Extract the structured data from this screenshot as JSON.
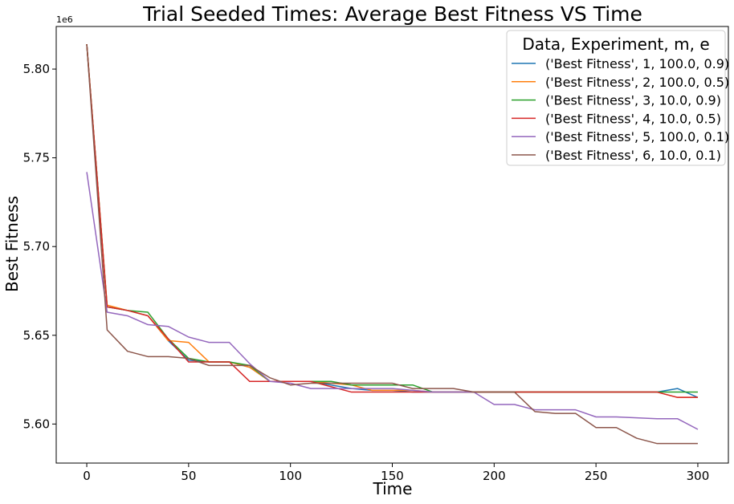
{
  "chart_data": {
    "type": "line",
    "title": "Trial Seeded Times: Average Best Fitness VS Time",
    "xlabel": "Time",
    "ylabel": "Best Fitness",
    "y_offset_label": "1e6",
    "xlim": [
      -15,
      315
    ],
    "ylim": [
      5.578,
      5.824
    ],
    "y_multiplier": 1000000,
    "x_ticks": [
      0,
      50,
      100,
      150,
      200,
      250,
      300
    ],
    "x_tick_labels": [
      "0",
      "50",
      "100",
      "150",
      "200",
      "250",
      "300"
    ],
    "y_ticks": [
      5.6,
      5.65,
      5.7,
      5.75,
      5.8
    ],
    "y_tick_labels": [
      "5.60",
      "5.65",
      "5.70",
      "5.75",
      "5.80"
    ],
    "grid": false,
    "legend": {
      "title": "Data, Experiment, m, e",
      "placement": "top-right"
    },
    "x": [
      0,
      10,
      20,
      30,
      40,
      50,
      60,
      70,
      80,
      90,
      100,
      110,
      120,
      130,
      140,
      150,
      160,
      170,
      180,
      190,
      200,
      210,
      220,
      230,
      240,
      250,
      260,
      270,
      280,
      290,
      300
    ],
    "series": [
      {
        "name": "('Best Fitness', 1, 100.0, 0.9)",
        "color": "#1f77b4",
        "values": [
          5.814,
          5.666,
          5.664,
          5.661,
          5.647,
          5.636,
          5.635,
          5.635,
          5.632,
          5.624,
          5.624,
          5.624,
          5.622,
          5.62,
          5.619,
          5.619,
          5.618,
          5.618,
          5.618,
          5.618,
          5.618,
          5.618,
          5.618,
          5.618,
          5.618,
          5.618,
          5.618,
          5.618,
          5.618,
          5.62,
          5.615
        ]
      },
      {
        "name": "('Best Fitness', 2, 100.0, 0.5)",
        "color": "#ff7f0e",
        "values": [
          5.814,
          5.667,
          5.664,
          5.661,
          5.647,
          5.646,
          5.635,
          5.635,
          5.632,
          5.624,
          5.624,
          5.624,
          5.623,
          5.622,
          5.619,
          5.619,
          5.619,
          5.618,
          5.618,
          5.618,
          5.618,
          5.618,
          5.618,
          5.618,
          5.618,
          5.618,
          5.618,
          5.618,
          5.618,
          5.615,
          5.615
        ]
      },
      {
        "name": "('Best Fitness', 3, 10.0, 0.9)",
        "color": "#2ca02c",
        "values": [
          5.814,
          5.666,
          5.664,
          5.663,
          5.648,
          5.637,
          5.635,
          5.635,
          5.633,
          5.624,
          5.624,
          5.624,
          5.624,
          5.622,
          5.622,
          5.622,
          5.622,
          5.618,
          5.618,
          5.618,
          5.618,
          5.618,
          5.618,
          5.618,
          5.618,
          5.618,
          5.618,
          5.618,
          5.618,
          5.618,
          5.618
        ]
      },
      {
        "name": "('Best Fitness', 4, 10.0, 0.5)",
        "color": "#d62728",
        "values": [
          5.814,
          5.666,
          5.664,
          5.661,
          5.648,
          5.635,
          5.635,
          5.635,
          5.624,
          5.624,
          5.624,
          5.624,
          5.621,
          5.618,
          5.618,
          5.618,
          5.618,
          5.618,
          5.618,
          5.618,
          5.618,
          5.618,
          5.618,
          5.618,
          5.618,
          5.618,
          5.618,
          5.618,
          5.618,
          5.615,
          5.615
        ]
      },
      {
        "name": "('Best Fitness', 5, 100.0, 0.1)",
        "color": "#9467bd",
        "values": [
          5.742,
          5.663,
          5.661,
          5.656,
          5.655,
          5.649,
          5.646,
          5.646,
          5.634,
          5.624,
          5.623,
          5.62,
          5.62,
          5.62,
          5.62,
          5.62,
          5.619,
          5.618,
          5.618,
          5.618,
          5.611,
          5.611,
          5.608,
          5.608,
          5.608,
          5.604,
          5.604,
          5.6035,
          5.603,
          5.603,
          5.597
        ]
      },
      {
        "name": "('Best Fitness', 6, 10.0, 0.1)",
        "color": "#8c564b",
        "values": [
          5.814,
          5.653,
          5.641,
          5.638,
          5.638,
          5.637,
          5.633,
          5.633,
          5.633,
          5.626,
          5.622,
          5.623,
          5.623,
          5.623,
          5.623,
          5.623,
          5.62,
          5.62,
          5.62,
          5.618,
          5.618,
          5.618,
          5.607,
          5.606,
          5.606,
          5.598,
          5.598,
          5.592,
          5.589,
          5.589,
          5.589
        ]
      }
    ]
  }
}
